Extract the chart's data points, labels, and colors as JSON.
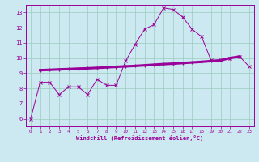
{
  "xlabel": "Windchill (Refroidissement éolien,°C)",
  "x": [
    0,
    1,
    2,
    3,
    4,
    5,
    6,
    7,
    8,
    9,
    10,
    11,
    12,
    13,
    14,
    15,
    16,
    17,
    18,
    19,
    20,
    21,
    22,
    23
  ],
  "line1_y": [
    6.0,
    8.4,
    8.4,
    7.6,
    8.1,
    8.1,
    7.6,
    8.6,
    8.2,
    8.2,
    9.8,
    10.9,
    11.9,
    12.2,
    13.3,
    13.2,
    12.7,
    11.9,
    11.4,
    9.85,
    9.85,
    10.0,
    10.1,
    9.45
  ],
  "line2_x": [
    1,
    2,
    3,
    4,
    5,
    6,
    7,
    8,
    9,
    10,
    11,
    12,
    13,
    14,
    15,
    16,
    17,
    18,
    19,
    20,
    21,
    22
  ],
  "line2_y": [
    9.2,
    9.22,
    9.25,
    9.27,
    9.3,
    9.32,
    9.35,
    9.38,
    9.42,
    9.45,
    9.48,
    9.52,
    9.56,
    9.6,
    9.63,
    9.67,
    9.71,
    9.75,
    9.8,
    9.85,
    10.0,
    10.1
  ],
  "line_color": "#990099",
  "bg_color": "#cce8f0",
  "grid_color": "#99ccbb",
  "ylim": [
    5.5,
    13.5
  ],
  "xlim": [
    -0.5,
    23.5
  ],
  "yticks": [
    6,
    7,
    8,
    9,
    10,
    11,
    12,
    13
  ],
  "xticks": [
    0,
    1,
    2,
    3,
    4,
    5,
    6,
    7,
    8,
    9,
    10,
    11,
    12,
    13,
    14,
    15,
    16,
    17,
    18,
    19,
    20,
    21,
    22,
    23
  ]
}
